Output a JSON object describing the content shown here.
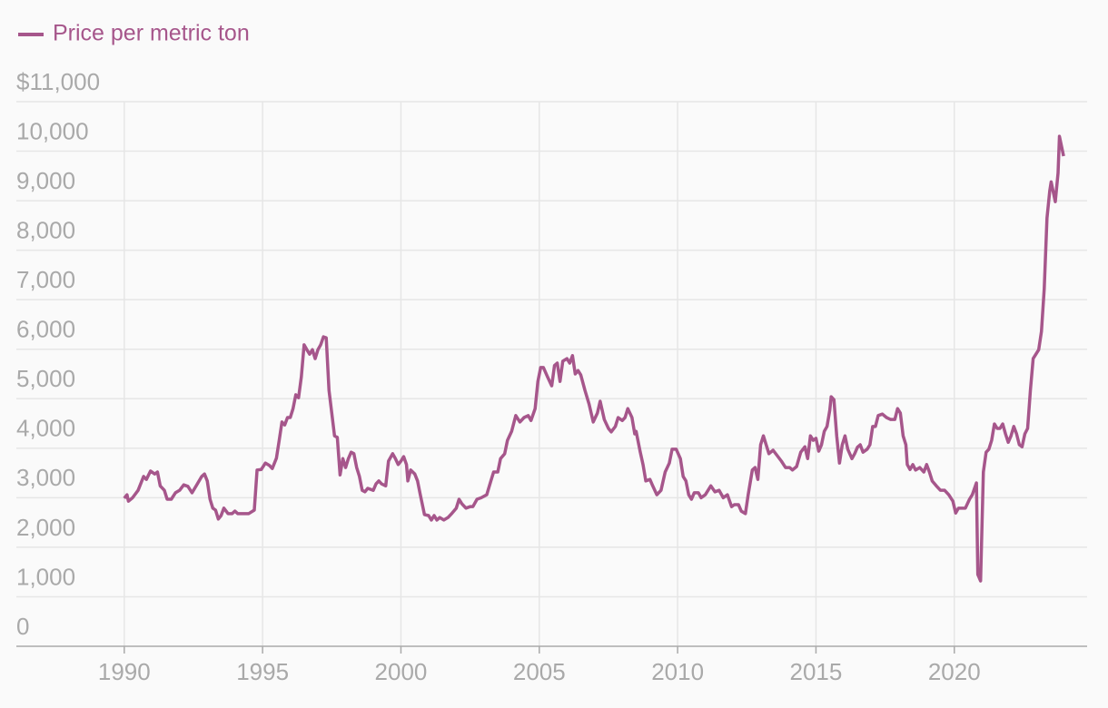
{
  "chart_data": {
    "type": "line",
    "legend": "top-left",
    "grid": true,
    "xlim": [
      1986.1,
      2024.8
    ],
    "ylim": [
      0,
      11000
    ],
    "xticks": [
      1990,
      1995,
      2000,
      2005,
      2010,
      2015,
      2020
    ],
    "yticks": [
      0,
      {
        "value": 1000,
        "label": "1,000"
      },
      {
        "value": 2000,
        "label": "2,000"
      },
      {
        "value": 3000,
        "label": "3,000"
      },
      {
        "value": 4000,
        "label": "4,000"
      },
      {
        "value": 5000,
        "label": "5,000"
      },
      {
        "value": 6000,
        "label": "6,000"
      },
      {
        "value": 7000,
        "label": "7,000"
      },
      {
        "value": 8000,
        "label": "8,000"
      },
      {
        "value": 9000,
        "label": "9,000"
      },
      {
        "value": 10000,
        "label": "10,000"
      },
      {
        "value": 11000,
        "label": "$11,000"
      }
    ],
    "x": [
      1990.0,
      1990.1,
      1990.15,
      1990.3,
      1990.5,
      1990.7,
      1990.8,
      1990.95,
      1991.1,
      1991.2,
      1991.3,
      1991.45,
      1991.55,
      1991.7,
      1991.85,
      1992.0,
      1992.15,
      1992.3,
      1992.45,
      1992.6,
      1992.8,
      1992.9,
      1993.0,
      1993.1,
      1993.2,
      1993.3,
      1993.4,
      1993.5,
      1993.6,
      1993.75,
      1993.9,
      1994.0,
      1994.1,
      1994.25,
      1994.4,
      1994.5,
      1994.7,
      1994.8,
      1994.95,
      1995.1,
      1995.25,
      1995.35,
      1995.5,
      1995.6,
      1995.7,
      1995.8,
      1995.9,
      1996.0,
      1996.1,
      1996.2,
      1996.3,
      1996.4,
      1996.5,
      1996.6,
      1996.7,
      1996.8,
      1996.9,
      1997.0,
      1997.1,
      1997.2,
      1997.3,
      1997.4,
      1997.5,
      1997.6,
      1997.7,
      1997.8,
      1997.9,
      1998.0,
      1998.1,
      1998.2,
      1998.3,
      1998.4,
      1998.5,
      1998.6,
      1998.7,
      1998.8,
      1999.0,
      1999.1,
      1999.2,
      1999.3,
      1999.45,
      1999.55,
      1999.7,
      1999.8,
      1999.9,
      2000.0,
      2000.1,
      2000.2,
      2000.25,
      2000.35,
      2000.5,
      2000.6,
      2000.7,
      2000.85,
      2001.0,
      2001.1,
      2001.2,
      2001.3,
      2001.4,
      2001.55,
      2001.7,
      2001.85,
      2002.0,
      2002.1,
      2002.2,
      2002.35,
      2002.5,
      2002.6,
      2002.75,
      2002.9,
      2003.1,
      2003.25,
      2003.35,
      2003.5,
      2003.6,
      2003.75,
      2003.85,
      2004.0,
      2004.15,
      2004.3,
      2004.45,
      2004.6,
      2004.7,
      2004.85,
      2004.95,
      2005.05,
      2005.15,
      2005.3,
      2005.45,
      2005.55,
      2005.65,
      2005.75,
      2005.85,
      2006.0,
      2006.1,
      2006.2,
      2006.3,
      2006.4,
      2006.5,
      2006.65,
      2006.8,
      2006.95,
      2007.1,
      2007.2,
      2007.35,
      2007.5,
      2007.6,
      2007.75,
      2007.85,
      2008.0,
      2008.1,
      2008.2,
      2008.35,
      2008.45,
      2008.5,
      2008.65,
      2008.75,
      2008.85,
      2009.0,
      2009.1,
      2009.25,
      2009.4,
      2009.55,
      2009.7,
      2009.8,
      2009.95,
      2010.1,
      2010.2,
      2010.3,
      2010.4,
      2010.5,
      2010.6,
      2010.75,
      2010.85,
      2011.0,
      2011.1,
      2011.2,
      2011.35,
      2011.5,
      2011.65,
      2011.8,
      2011.95,
      2012.05,
      2012.2,
      2012.3,
      2012.45,
      2012.55,
      2012.7,
      2012.8,
      2012.9,
      2013.0,
      2013.1,
      2013.2,
      2013.3,
      2013.45,
      2013.6,
      2013.75,
      2013.9,
      2014.05,
      2014.15,
      2014.3,
      2014.45,
      2014.6,
      2014.7,
      2014.8,
      2014.9,
      2015.0,
      2015.1,
      2015.2,
      2015.3,
      2015.4,
      2015.5,
      2015.55,
      2015.65,
      2015.75,
      2015.85,
      2015.95,
      2016.05,
      2016.15,
      2016.3,
      2016.4,
      2016.5,
      2016.6,
      2016.7,
      2016.85,
      2016.95,
      2017.05,
      2017.15,
      2017.25,
      2017.4,
      2017.55,
      2017.7,
      2017.85,
      2017.95,
      2018.05,
      2018.15,
      2018.25,
      2018.3,
      2018.4,
      2018.5,
      2018.6,
      2018.75,
      2018.9,
      2019.0,
      2019.1,
      2019.2,
      2019.35,
      2019.5,
      2019.65,
      2019.8,
      2019.95,
      2020.05,
      2020.15,
      2020.25,
      2020.4,
      2020.55,
      2020.65,
      2020.8,
      2020.85,
      2020.95,
      2021.05,
      2021.15,
      2021.25,
      2021.35,
      2021.45,
      2021.55,
      2021.65,
      2021.75,
      2021.85,
      2021.95,
      2022.05,
      2022.15,
      2022.25,
      2022.35,
      2022.45,
      2022.55,
      2022.65,
      2022.75,
      2022.85,
      2022.95,
      2023.05,
      2023.15,
      2023.25,
      2023.35,
      2023.45,
      2023.5,
      2023.65,
      2023.75,
      2023.8,
      2023.95
    ],
    "series": [
      {
        "name": "Price per metric ton",
        "color": "#a6568b",
        "values": [
          2990,
          3060,
          2930,
          3000,
          3150,
          3430,
          3370,
          3540,
          3480,
          3520,
          3240,
          3150,
          2970,
          2970,
          3100,
          3150,
          3260,
          3230,
          3100,
          3240,
          3430,
          3480,
          3340,
          2970,
          2790,
          2750,
          2570,
          2640,
          2790,
          2680,
          2680,
          2730,
          2680,
          2680,
          2680,
          2680,
          2750,
          3560,
          3570,
          3700,
          3650,
          3590,
          3800,
          4160,
          4530,
          4470,
          4620,
          4620,
          4800,
          5080,
          5020,
          5440,
          6090,
          5990,
          5900,
          5990,
          5810,
          5990,
          6090,
          6250,
          6230,
          5170,
          4710,
          4250,
          4220,
          3460,
          3790,
          3610,
          3790,
          3920,
          3890,
          3610,
          3430,
          3150,
          3120,
          3190,
          3150,
          3280,
          3340,
          3280,
          3240,
          3740,
          3890,
          3790,
          3670,
          3740,
          3830,
          3670,
          3340,
          3560,
          3480,
          3340,
          3060,
          2660,
          2640,
          2550,
          2640,
          2550,
          2600,
          2550,
          2600,
          2690,
          2790,
          2970,
          2880,
          2790,
          2820,
          2820,
          2970,
          3000,
          3060,
          3340,
          3520,
          3520,
          3790,
          3890,
          4160,
          4340,
          4660,
          4530,
          4620,
          4660,
          4560,
          4800,
          5350,
          5630,
          5630,
          5440,
          5260,
          5670,
          5720,
          5350,
          5760,
          5810,
          5720,
          5870,
          5500,
          5570,
          5480,
          5170,
          4890,
          4530,
          4710,
          4950,
          4580,
          4400,
          4330,
          4440,
          4620,
          4560,
          4620,
          4800,
          4620,
          4290,
          4340,
          3920,
          3670,
          3340,
          3370,
          3240,
          3060,
          3150,
          3520,
          3700,
          3980,
          3980,
          3790,
          3430,
          3340,
          3060,
          2970,
          3100,
          3100,
          3000,
          3060,
          3150,
          3240,
          3120,
          3150,
          3000,
          3060,
          2820,
          2860,
          2860,
          2730,
          2680,
          3060,
          3560,
          3610,
          3370,
          4070,
          4250,
          4070,
          3890,
          3960,
          3850,
          3740,
          3610,
          3610,
          3560,
          3630,
          3920,
          4030,
          3790,
          4250,
          4160,
          4200,
          3940,
          4070,
          4340,
          4440,
          4770,
          5040,
          4980,
          4250,
          3700,
          4070,
          4250,
          3980,
          3790,
          3890,
          4020,
          4070,
          3920,
          3980,
          4070,
          4440,
          4440,
          4660,
          4690,
          4620,
          4580,
          4580,
          4800,
          4710,
          4250,
          4070,
          3670,
          3570,
          3670,
          3560,
          3610,
          3520,
          3670,
          3520,
          3340,
          3240,
          3150,
          3150,
          3060,
          2930,
          2690,
          2790,
          2790,
          2790,
          2970,
          3060,
          3300,
          1450,
          1320,
          3520,
          3920,
          3980,
          4160,
          4490,
          4400,
          4400,
          4490,
          4290,
          4120,
          4250,
          4440,
          4290,
          4070,
          4030,
          4290,
          4400,
          5170,
          5810,
          5900,
          5990,
          6360,
          7220,
          8650,
          9200,
          9380,
          8980,
          9560,
          10300,
          9900
        ]
      }
    ]
  }
}
